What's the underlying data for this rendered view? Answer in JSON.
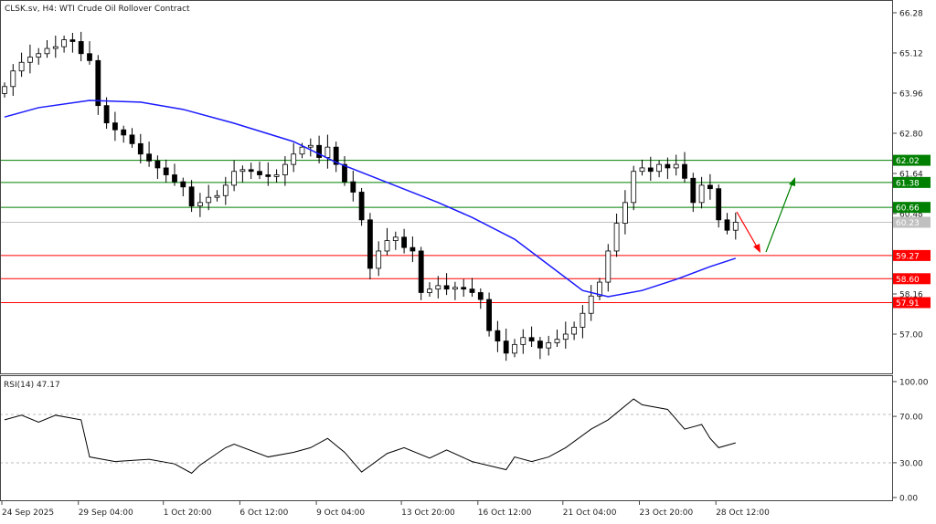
{
  "header": {
    "title": "CLSK.sv, H4:  WTI Crude Oil Rollover Contract"
  },
  "colors": {
    "bull": "#ffffff",
    "bear": "#000000",
    "ma": "#1a1aff",
    "support": "#ff0000",
    "resistance": "#008000",
    "current": "#c0c0c0",
    "rsi": "#000000"
  },
  "chart_data": [
    {
      "type": "candlestick",
      "title": "CLSK.sv, H4:  WTI Crude Oil Rollover Contract",
      "ylim": [
        56.4,
        66.28
      ],
      "y_ticks": [
        "66.28",
        "65.12",
        "63.96",
        "62.80",
        "61.64",
        "60.48",
        "58.16",
        "57.00"
      ],
      "x_ticks": [
        {
          "label": "24 Sep 2025",
          "index": 0
        },
        {
          "label": "29 Sep 04:00",
          "index": 9
        },
        {
          "label": "1 Oct 20:00",
          "index": 19
        },
        {
          "label": "6 Oct 12:00",
          "index": 28
        },
        {
          "label": "9 Oct 04:00",
          "index": 37
        },
        {
          "label": "13 Oct 20:00",
          "index": 47
        },
        {
          "label": "16 Oct 12:00",
          "index": 56
        },
        {
          "label": "21 Oct 04:00",
          "index": 66
        },
        {
          "label": "23 Oct 20:00",
          "index": 75
        },
        {
          "label": "28 Oct 12:00",
          "index": 84
        }
      ],
      "closes": [
        64.15,
        64.6,
        64.85,
        65.0,
        65.1,
        65.25,
        65.3,
        65.5,
        65.45,
        65.1,
        64.9,
        63.6,
        63.1,
        62.9,
        62.75,
        62.5,
        62.2,
        62.0,
        61.8,
        61.6,
        61.4,
        61.25,
        60.7,
        60.8,
        60.95,
        61.0,
        61.3,
        61.7,
        61.75,
        61.7,
        61.6,
        61.55,
        61.6,
        61.9,
        62.2,
        62.4,
        62.45,
        62.1,
        62.4,
        61.9,
        61.4,
        61.1,
        60.3,
        58.9,
        59.4,
        59.7,
        59.8,
        59.5,
        59.4,
        58.2,
        58.3,
        58.4,
        58.3,
        58.35,
        58.3,
        58.2,
        58.0,
        57.1,
        56.8,
        56.45,
        56.7,
        56.9,
        56.8,
        56.6,
        56.75,
        56.85,
        57.0,
        57.2,
        57.6,
        58.1,
        58.5,
        59.4,
        60.2,
        60.8,
        61.7,
        61.8,
        61.7,
        61.9,
        61.8,
        61.9,
        61.5,
        60.8,
        61.3,
        61.2,
        60.3,
        60.0,
        60.23
      ],
      "moving_average": [
        [
          0,
          63.27
        ],
        [
          4,
          63.54
        ],
        [
          10,
          63.75
        ],
        [
          16,
          63.7
        ],
        [
          21,
          63.49
        ],
        [
          27,
          63.09
        ],
        [
          34,
          62.56
        ],
        [
          39,
          61.96
        ],
        [
          45,
          61.38
        ],
        [
          51,
          60.8
        ],
        [
          55,
          60.37
        ],
        [
          60,
          59.74
        ],
        [
          64,
          59.0
        ],
        [
          68,
          58.26
        ],
        [
          71,
          58.08
        ],
        [
          75,
          58.26
        ],
        [
          79,
          58.58
        ],
        [
          83,
          58.95
        ],
        [
          86,
          59.19
        ]
      ],
      "levels": [
        {
          "value": 62.02,
          "label": "62.02",
          "kind": "resistance"
        },
        {
          "value": 61.38,
          "label": "61.38",
          "kind": "resistance"
        },
        {
          "value": 60.66,
          "label": "60.66",
          "kind": "resistance"
        },
        {
          "value": 60.23,
          "label": "60.23",
          "kind": "current"
        },
        {
          "value": 59.27,
          "label": "59.27",
          "kind": "support"
        },
        {
          "value": 58.6,
          "label": "58.60",
          "kind": "support"
        },
        {
          "value": 57.91,
          "label": "57.91",
          "kind": "support"
        }
      ]
    },
    {
      "type": "line",
      "title": "RSI(14) 47.17",
      "ylim": [
        0,
        100
      ],
      "y_ticks": [
        "100.00",
        "70.00",
        "30.00",
        "0.00"
      ],
      "points": [
        [
          0,
          67
        ],
        [
          2,
          71
        ],
        [
          4,
          65
        ],
        [
          6,
          71
        ],
        [
          9,
          67
        ],
        [
          10,
          35
        ],
        [
          13,
          31
        ],
        [
          17,
          33
        ],
        [
          20,
          29
        ],
        [
          22,
          21
        ],
        [
          23,
          28
        ],
        [
          26,
          43
        ],
        [
          27,
          46
        ],
        [
          31,
          35
        ],
        [
          34,
          39
        ],
        [
          36,
          43
        ],
        [
          38,
          51
        ],
        [
          40,
          39
        ],
        [
          42,
          22
        ],
        [
          45,
          38
        ],
        [
          47,
          43
        ],
        [
          50,
          34
        ],
        [
          52,
          41
        ],
        [
          55,
          31
        ],
        [
          59,
          24
        ],
        [
          60,
          35
        ],
        [
          62,
          31
        ],
        [
          64,
          35
        ],
        [
          66,
          43
        ],
        [
          69,
          59
        ],
        [
          71,
          67
        ],
        [
          74,
          85
        ],
        [
          75,
          80
        ],
        [
          78,
          76
        ],
        [
          80,
          59
        ],
        [
          82,
          63
        ],
        [
          83,
          51
        ],
        [
          84,
          43
        ],
        [
          86,
          47.17
        ]
      ]
    }
  ]
}
